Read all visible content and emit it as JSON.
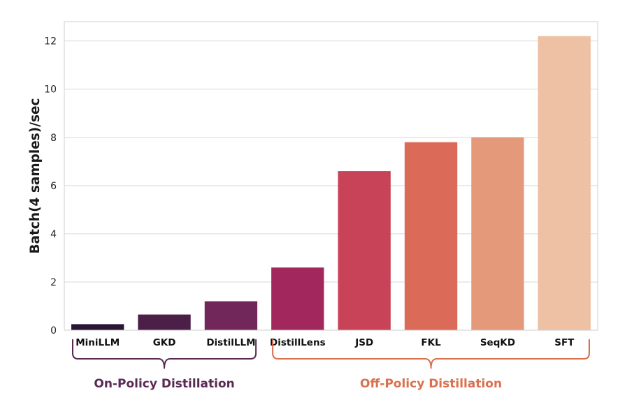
{
  "chart_data": {
    "type": "bar",
    "categories": [
      "MiniLLM",
      "GKD",
      "DistilLLM",
      "DistillLens",
      "JSD",
      "FKL",
      "SeqKD",
      "SFT"
    ],
    "values": [
      0.25,
      0.65,
      1.2,
      2.6,
      6.6,
      7.8,
      8.0,
      12.2
    ],
    "colors": [
      "#2a1535",
      "#4b1f48",
      "#72275a",
      "#a1275c",
      "#c84258",
      "#dc6a58",
      "#e49a7a",
      "#eec0a4"
    ],
    "ylabel": "Batch(4 samples)/sec",
    "xlabel": "",
    "ylim": [
      0,
      12.8
    ],
    "yticks": [
      0,
      2,
      4,
      6,
      8,
      10,
      12
    ],
    "grid": "horizontal",
    "groups": [
      {
        "label": "On-Policy Distillation",
        "from": 0,
        "to": 2,
        "color": "#5a2a55"
      },
      {
        "label": "Off-Policy Distillation",
        "from": 3,
        "to": 7,
        "color": "#d9704e"
      }
    ]
  }
}
